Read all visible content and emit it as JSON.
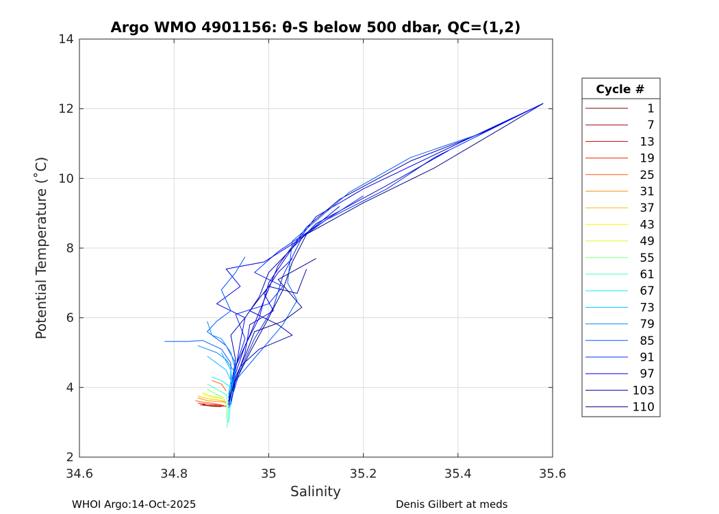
{
  "chart_data": {
    "type": "line",
    "title": "Argo WMO 4901156: θ-S below 500 dbar,  QC=(1,2)",
    "xlabel": "Salinity",
    "ylabel": "Potential Temperature (˚C)",
    "xlim": [
      34.6,
      35.6
    ],
    "ylim": [
      2,
      14
    ],
    "xticks": [
      "34.6",
      "34.8",
      "35",
      "35.2",
      "35.4",
      "35.6"
    ],
    "yticks": [
      "2",
      "4",
      "6",
      "8",
      "10",
      "12",
      "14"
    ],
    "grid": true,
    "legend": {
      "title": "Cycle #",
      "placement": "outside-right",
      "entries": [
        {
          "label": "1",
          "color": "#800000"
        },
        {
          "label": "7",
          "color": "#a50000"
        },
        {
          "label": "13",
          "color": "#cc0000"
        },
        {
          "label": "19",
          "color": "#e82b00"
        },
        {
          "label": "25",
          "color": "#ff5800"
        },
        {
          "label": "31",
          "color": "#ff8a00"
        },
        {
          "label": "37",
          "color": "#ffbd00"
        },
        {
          "label": "43",
          "color": "#fff000"
        },
        {
          "label": "49",
          "color": "#c8ff30"
        },
        {
          "label": "55",
          "color": "#80ff80"
        },
        {
          "label": "61",
          "color": "#3fffbf"
        },
        {
          "label": "67",
          "color": "#00f0ff"
        },
        {
          "label": "73",
          "color": "#00bdff"
        },
        {
          "label": "79",
          "color": "#008aff"
        },
        {
          "label": "85",
          "color": "#0058ff"
        },
        {
          "label": "91",
          "color": "#0028ff"
        },
        {
          "label": "97",
          "color": "#0000e5"
        },
        {
          "label": "103",
          "color": "#0000b0"
        },
        {
          "label": "110",
          "color": "#000080"
        }
      ]
    },
    "series": [
      {
        "color": "#0000b0",
        "points": [
          [
            35.58,
            12.15
          ],
          [
            35.45,
            11.3
          ],
          [
            35.3,
            10.5
          ],
          [
            35.15,
            9.4
          ],
          [
            35.08,
            8.6
          ],
          [
            35.02,
            7.5
          ],
          [
            34.99,
            6.5
          ],
          [
            34.96,
            5.5
          ],
          [
            34.93,
            4.6
          ],
          [
            34.915,
            3.5
          ]
        ]
      },
      {
        "color": "#0000e5",
        "points": [
          [
            35.58,
            12.15
          ],
          [
            35.4,
            11.0
          ],
          [
            35.2,
            9.7
          ],
          [
            35.1,
            8.9
          ],
          [
            35.05,
            8.0
          ],
          [
            35.0,
            7.0
          ],
          [
            34.98,
            6.0
          ],
          [
            34.95,
            5.2
          ],
          [
            34.93,
            4.4
          ],
          [
            34.915,
            3.6
          ]
        ]
      },
      {
        "color": "#0028ff",
        "points": [
          [
            35.58,
            12.15
          ],
          [
            35.35,
            10.6
          ],
          [
            35.25,
            9.7
          ],
          [
            35.12,
            8.8
          ],
          [
            35.07,
            8.3
          ],
          [
            35.03,
            7.2
          ],
          [
            35.01,
            6.3
          ],
          [
            34.97,
            5.4
          ],
          [
            34.94,
            4.5
          ],
          [
            34.915,
            3.4
          ]
        ]
      },
      {
        "color": "#000080",
        "points": [
          [
            35.58,
            12.15
          ],
          [
            35.5,
            11.5
          ],
          [
            35.35,
            10.3
          ],
          [
            35.2,
            9.3
          ],
          [
            35.08,
            8.4
          ],
          [
            35.05,
            7.6
          ],
          [
            35.03,
            6.8
          ],
          [
            35.0,
            6.0
          ],
          [
            34.96,
            5.0
          ],
          [
            34.92,
            3.9
          ]
        ]
      },
      {
        "color": "#0058ff",
        "points": [
          [
            35.45,
            11.3
          ],
          [
            35.3,
            10.6
          ],
          [
            35.17,
            9.6
          ],
          [
            35.05,
            8.2
          ],
          [
            35.04,
            7.0
          ],
          [
            35.06,
            6.5
          ],
          [
            35.03,
            5.8
          ],
          [
            34.98,
            5.0
          ],
          [
            34.93,
            4.2
          ],
          [
            34.92,
            3.5
          ]
        ]
      },
      {
        "color": "#0000b0",
        "points": [
          [
            35.38,
            10.8
          ],
          [
            35.25,
            9.8
          ],
          [
            35.1,
            8.7
          ],
          [
            35.0,
            7.3
          ],
          [
            34.98,
            6.6
          ],
          [
            34.95,
            6.0
          ],
          [
            34.92,
            5.5
          ],
          [
            34.93,
            4.8
          ],
          [
            34.92,
            4.0
          ]
        ]
      },
      {
        "color": "#0028ff",
        "points": [
          [
            35.2,
            9.5
          ],
          [
            35.12,
            8.8
          ],
          [
            35.02,
            7.9
          ],
          [
            34.97,
            7.3
          ],
          [
            35.03,
            6.9
          ],
          [
            35.0,
            6.4
          ],
          [
            34.93,
            6.1
          ],
          [
            34.95,
            5.4
          ],
          [
            34.93,
            4.6
          ],
          [
            34.915,
            3.7
          ]
        ]
      },
      {
        "color": "#0000e5",
        "points": [
          [
            35.15,
            9.2
          ],
          [
            35.06,
            8.2
          ],
          [
            34.99,
            7.6
          ],
          [
            34.91,
            7.4
          ],
          [
            34.94,
            6.9
          ],
          [
            34.89,
            6.4
          ],
          [
            34.95,
            6.0
          ],
          [
            34.94,
            5.3
          ],
          [
            34.93,
            4.5
          ],
          [
            34.915,
            3.6
          ]
        ]
      },
      {
        "color": "#0058ff",
        "points": [
          [
            34.95,
            7.75
          ],
          [
            34.93,
            7.3
          ],
          [
            34.9,
            6.8
          ],
          [
            34.92,
            6.2
          ],
          [
            34.89,
            5.9
          ],
          [
            34.87,
            5.6
          ],
          [
            34.91,
            5.2
          ],
          [
            34.93,
            4.7
          ],
          [
            34.92,
            4.0
          ]
        ]
      },
      {
        "color": "#008aff",
        "points": [
          [
            34.87,
            5.9
          ],
          [
            34.88,
            5.5
          ],
          [
            34.9,
            5.4
          ],
          [
            34.92,
            5.0
          ],
          [
            34.93,
            4.5
          ],
          [
            34.92,
            4.0
          ]
        ]
      },
      {
        "color": "#0058ff",
        "points": [
          [
            34.78,
            5.32
          ],
          [
            34.83,
            5.32
          ],
          [
            34.86,
            5.35
          ],
          [
            34.9,
            5.1
          ],
          [
            34.92,
            4.7
          ],
          [
            34.92,
            4.1
          ]
        ]
      },
      {
        "color": "#008aff",
        "points": [
          [
            34.85,
            5.2
          ],
          [
            34.89,
            5.0
          ],
          [
            34.91,
            4.8
          ],
          [
            34.93,
            4.4
          ],
          [
            34.92,
            3.9
          ]
        ]
      },
      {
        "color": "#00bdff",
        "points": [
          [
            34.87,
            4.9
          ],
          [
            34.89,
            4.7
          ],
          [
            34.91,
            4.5
          ],
          [
            34.92,
            4.2
          ],
          [
            34.915,
            3.8
          ]
        ]
      },
      {
        "color": "#00f0ff",
        "points": [
          [
            34.88,
            4.3
          ],
          [
            34.9,
            4.2
          ],
          [
            34.92,
            4.0
          ],
          [
            34.92,
            3.6
          ],
          [
            34.915,
            3.0
          ]
        ]
      },
      {
        "color": "#3fffbf",
        "points": [
          [
            34.87,
            4.1
          ],
          [
            34.89,
            3.95
          ],
          [
            34.91,
            3.8
          ],
          [
            34.915,
            3.4
          ],
          [
            34.912,
            2.85
          ]
        ]
      },
      {
        "color": "#80ff80",
        "points": [
          [
            34.87,
            3.95
          ],
          [
            34.89,
            3.8
          ],
          [
            34.905,
            3.7
          ],
          [
            34.912,
            3.4
          ],
          [
            34.91,
            3.1
          ]
        ]
      },
      {
        "color": "#c8ff30",
        "points": [
          [
            34.86,
            3.85
          ],
          [
            34.88,
            3.75
          ],
          [
            34.9,
            3.7
          ],
          [
            34.91,
            3.5
          ]
        ]
      },
      {
        "color": "#fff000",
        "points": [
          [
            34.86,
            3.8
          ],
          [
            34.88,
            3.72
          ],
          [
            34.9,
            3.68
          ],
          [
            34.91,
            3.55
          ]
        ]
      },
      {
        "color": "#ffbd00",
        "points": [
          [
            34.85,
            3.75
          ],
          [
            34.87,
            3.68
          ],
          [
            34.89,
            3.65
          ],
          [
            34.905,
            3.6
          ]
        ]
      },
      {
        "color": "#ff8a00",
        "points": [
          [
            34.85,
            3.7
          ],
          [
            34.87,
            3.62
          ],
          [
            34.89,
            3.6
          ],
          [
            34.91,
            3.58
          ]
        ]
      },
      {
        "color": "#ff5800",
        "points": [
          [
            34.845,
            3.62
          ],
          [
            34.86,
            3.58
          ],
          [
            34.88,
            3.55
          ],
          [
            34.9,
            3.5
          ]
        ]
      },
      {
        "color": "#e82b00",
        "points": [
          [
            34.85,
            3.55
          ],
          [
            34.87,
            3.52
          ],
          [
            34.89,
            3.5
          ],
          [
            34.905,
            3.48
          ]
        ]
      },
      {
        "color": "#cc0000",
        "points": [
          [
            34.855,
            3.5
          ],
          [
            34.87,
            3.48
          ],
          [
            34.89,
            3.47
          ],
          [
            34.91,
            3.46
          ]
        ]
      },
      {
        "color": "#a50000",
        "points": [
          [
            34.86,
            3.5
          ],
          [
            34.88,
            3.46
          ],
          [
            34.9,
            3.45
          ]
        ]
      },
      {
        "color": "#800000",
        "points": [
          [
            34.86,
            3.52
          ],
          [
            34.87,
            3.48
          ],
          [
            34.89,
            3.47
          ]
        ]
      },
      {
        "color": "#ff5800",
        "points": [
          [
            34.88,
            4.2
          ],
          [
            34.9,
            4.1
          ],
          [
            34.91,
            3.9
          ]
        ]
      },
      {
        "color": "#00bdff",
        "points": [
          [
            34.9,
            5.0
          ],
          [
            34.92,
            4.5
          ],
          [
            34.925,
            3.8
          ]
        ]
      },
      {
        "color": "#0000b0",
        "points": [
          [
            35.08,
            7.4
          ],
          [
            35.06,
            6.7
          ],
          [
            35.0,
            6.9
          ],
          [
            34.96,
            6.2
          ],
          [
            35.02,
            5.8
          ],
          [
            35.05,
            5.5
          ],
          [
            34.98,
            5.1
          ],
          [
            34.94,
            4.6
          ],
          [
            34.92,
            3.8
          ]
        ]
      },
      {
        "color": "#000080",
        "points": [
          [
            35.1,
            7.7
          ],
          [
            35.02,
            7.1
          ],
          [
            35.07,
            6.3
          ],
          [
            35.03,
            5.9
          ],
          [
            34.97,
            5.6
          ],
          [
            34.95,
            4.9
          ],
          [
            34.93,
            4.3
          ],
          [
            34.915,
            3.5
          ]
        ]
      },
      {
        "color": "#0000e5",
        "points": [
          [
            35.05,
            7.7
          ],
          [
            35.02,
            7.3
          ],
          [
            34.99,
            6.7
          ],
          [
            35.01,
            6.2
          ],
          [
            34.96,
            5.8
          ],
          [
            34.95,
            5.0
          ],
          [
            34.93,
            4.2
          ],
          [
            34.92,
            3.6
          ]
        ]
      }
    ]
  },
  "footer": {
    "left": "WHOI Argo:14-Oct-2025",
    "right": "Denis Gilbert at meds"
  }
}
